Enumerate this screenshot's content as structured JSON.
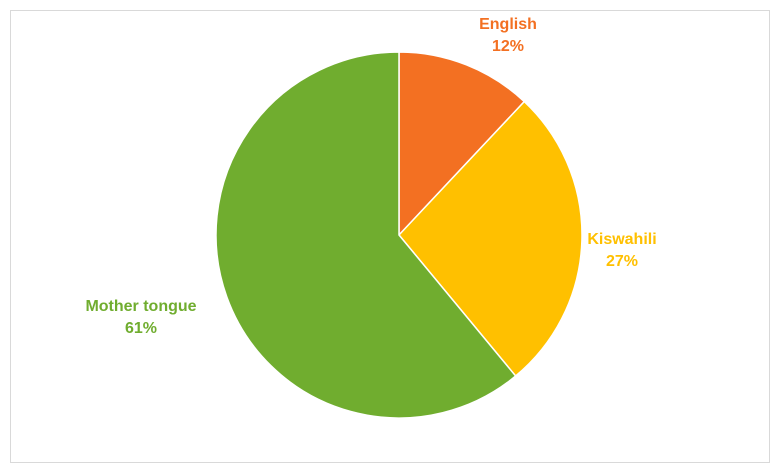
{
  "chart_data": {
    "type": "pie",
    "title": "",
    "slices": [
      {
        "label": "English",
        "value": 12,
        "value_label": "12%",
        "color": "#F37022"
      },
      {
        "label": "Kiswahili",
        "value": 27,
        "value_label": "27%",
        "color": "#FFC000"
      },
      {
        "label": "Mother tongue",
        "value": 61,
        "value_label": "61%",
        "color": "#70AD2F"
      }
    ],
    "start_angle_deg": 0,
    "direction": "clockwise",
    "legend": "none",
    "slice_border_color": "#ffffff"
  }
}
